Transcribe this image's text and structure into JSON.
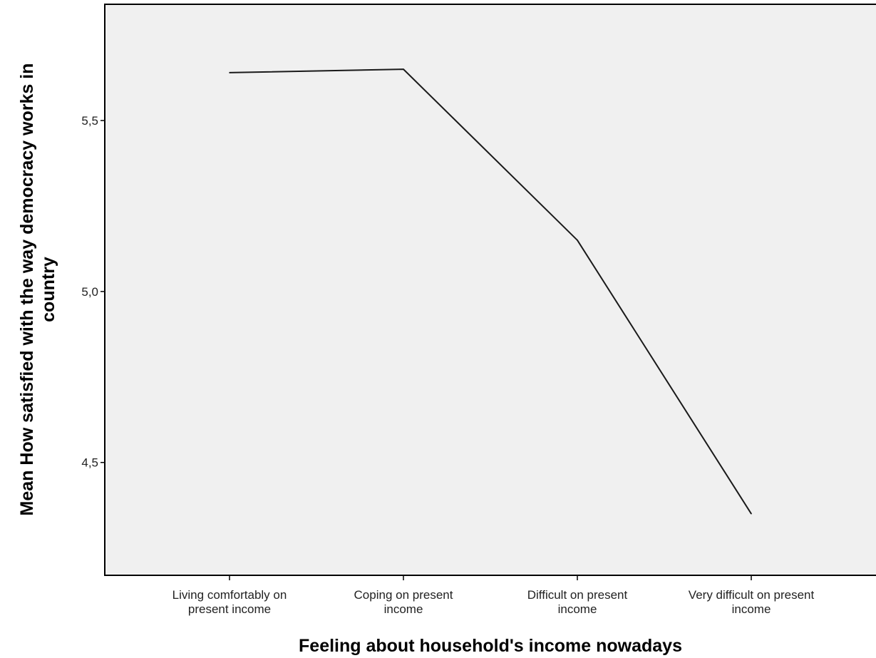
{
  "chart_data": {
    "type": "line",
    "title": "",
    "xlabel": "Feeling about household's income nowadays",
    "ylabel_lines": [
      "Mean How satisfied with the way democracy works in",
      "country"
    ],
    "categories": [
      [
        "Living comfortably on",
        "present income"
      ],
      [
        "Coping on present",
        "income"
      ],
      [
        "Difficult on present",
        "income"
      ],
      [
        "Very difficult on present",
        "income"
      ]
    ],
    "series": [
      {
        "values": [
          5.64,
          5.65,
          5.15,
          4.35
        ]
      }
    ],
    "yticks": [
      4.5,
      5.0,
      5.5
    ],
    "ytick_labels": [
      "4,5",
      "5,0",
      "5,5"
    ],
    "ylim": [
      4.17,
      5.84
    ],
    "grid": false,
    "legend": "none",
    "colors": {
      "plot_background": "#f0f0f0",
      "line": "#1a1a1a",
      "axis": "#000000"
    }
  }
}
